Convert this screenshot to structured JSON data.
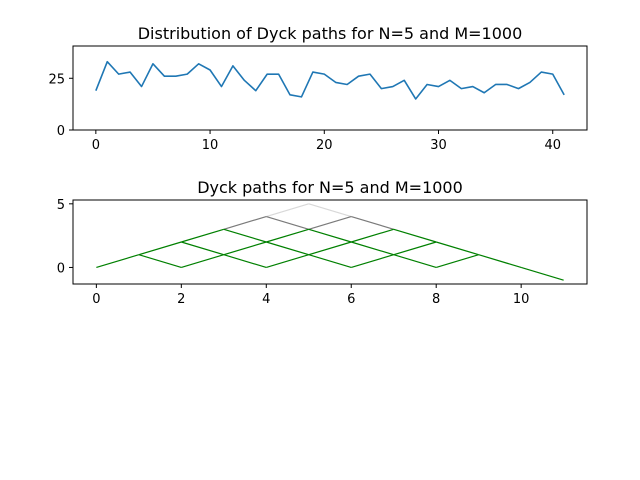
{
  "chart_data": [
    {
      "type": "line",
      "title": "Distribution of Dyck paths for N=5 and M=1000",
      "xlim": [
        -2,
        43
      ],
      "ylim": [
        0,
        40.6
      ],
      "xticks": [
        0,
        10,
        20,
        30,
        40
      ],
      "yticks": [
        0,
        25
      ],
      "color": "#1f77b4",
      "series": [
        {
          "x": [
            0,
            1,
            2,
            3,
            4,
            5,
            6,
            7,
            8,
            9,
            10,
            11,
            12,
            13,
            14,
            15,
            16,
            17,
            18,
            19,
            20,
            21,
            22,
            23,
            24,
            25,
            26,
            27,
            28,
            29,
            30,
            31,
            32,
            33,
            34,
            35,
            36,
            37,
            38,
            39,
            40,
            41
          ],
          "values": [
            19,
            33,
            27,
            28,
            21,
            32,
            26,
            26,
            27,
            32,
            29,
            21,
            31,
            24,
            19,
            27,
            27,
            17,
            16,
            28,
            27,
            23,
            22,
            26,
            27,
            20,
            21,
            24,
            15,
            22,
            21,
            24,
            20,
            21,
            18,
            22,
            22,
            20,
            23,
            28,
            27,
            17
          ]
        }
      ]
    },
    {
      "type": "line",
      "title": "Dyck paths for N=5 and M=1000",
      "xlim": [
        -0.55,
        11.55
      ],
      "ylim": [
        -1.3,
        5.3
      ],
      "xticks": [
        0,
        2,
        4,
        6,
        8,
        10
      ],
      "yticks": [
        0,
        5
      ],
      "edges": [
        {
          "from": [
            0,
            0
          ],
          "to": [
            1,
            1
          ],
          "color": "#008000"
        },
        {
          "from": [
            1,
            1
          ],
          "to": [
            2,
            2
          ],
          "color": "#008000"
        },
        {
          "from": [
            1,
            1
          ],
          "to": [
            2,
            0
          ],
          "color": "#008000"
        },
        {
          "from": [
            2,
            2
          ],
          "to": [
            3,
            3
          ],
          "color": "#008000"
        },
        {
          "from": [
            2,
            2
          ],
          "to": [
            3,
            1
          ],
          "color": "#008000"
        },
        {
          "from": [
            2,
            0
          ],
          "to": [
            3,
            1
          ],
          "color": "#008000"
        },
        {
          "from": [
            3,
            3
          ],
          "to": [
            4,
            4
          ],
          "color": "#7a7a7a"
        },
        {
          "from": [
            3,
            3
          ],
          "to": [
            4,
            2
          ],
          "color": "#008000"
        },
        {
          "from": [
            3,
            1
          ],
          "to": [
            4,
            2
          ],
          "color": "#008000"
        },
        {
          "from": [
            3,
            1
          ],
          "to": [
            4,
            0
          ],
          "color": "#008000"
        },
        {
          "from": [
            4,
            4
          ],
          "to": [
            5,
            5
          ],
          "color": "#d8d8d8"
        },
        {
          "from": [
            4,
            4
          ],
          "to": [
            5,
            3
          ],
          "color": "#7a7a7a"
        },
        {
          "from": [
            4,
            2
          ],
          "to": [
            5,
            3
          ],
          "color": "#008000"
        },
        {
          "from": [
            4,
            2
          ],
          "to": [
            5,
            1
          ],
          "color": "#008000"
        },
        {
          "from": [
            4,
            0
          ],
          "to": [
            5,
            1
          ],
          "color": "#008000"
        },
        {
          "from": [
            5,
            5
          ],
          "to": [
            6,
            4
          ],
          "color": "#d8d8d8"
        },
        {
          "from": [
            5,
            3
          ],
          "to": [
            6,
            4
          ],
          "color": "#7a7a7a"
        },
        {
          "from": [
            5,
            3
          ],
          "to": [
            6,
            2
          ],
          "color": "#008000"
        },
        {
          "from": [
            5,
            1
          ],
          "to": [
            6,
            2
          ],
          "color": "#008000"
        },
        {
          "from": [
            5,
            1
          ],
          "to": [
            6,
            0
          ],
          "color": "#008000"
        },
        {
          "from": [
            6,
            4
          ],
          "to": [
            7,
            3
          ],
          "color": "#7a7a7a"
        },
        {
          "from": [
            6,
            2
          ],
          "to": [
            7,
            3
          ],
          "color": "#008000"
        },
        {
          "from": [
            6,
            2
          ],
          "to": [
            7,
            1
          ],
          "color": "#008000"
        },
        {
          "from": [
            6,
            0
          ],
          "to": [
            7,
            1
          ],
          "color": "#008000"
        },
        {
          "from": [
            7,
            3
          ],
          "to": [
            8,
            2
          ],
          "color": "#008000"
        },
        {
          "from": [
            7,
            1
          ],
          "to": [
            8,
            2
          ],
          "color": "#008000"
        },
        {
          "from": [
            7,
            1
          ],
          "to": [
            8,
            0
          ],
          "color": "#008000"
        },
        {
          "from": [
            8,
            2
          ],
          "to": [
            9,
            1
          ],
          "color": "#008000"
        },
        {
          "from": [
            8,
            0
          ],
          "to": [
            9,
            1
          ],
          "color": "#008000"
        },
        {
          "from": [
            9,
            1
          ],
          "to": [
            10,
            0
          ],
          "color": "#008000"
        },
        {
          "from": [
            10,
            0
          ],
          "to": [
            11,
            -1
          ],
          "color": "#008000"
        }
      ]
    }
  ]
}
